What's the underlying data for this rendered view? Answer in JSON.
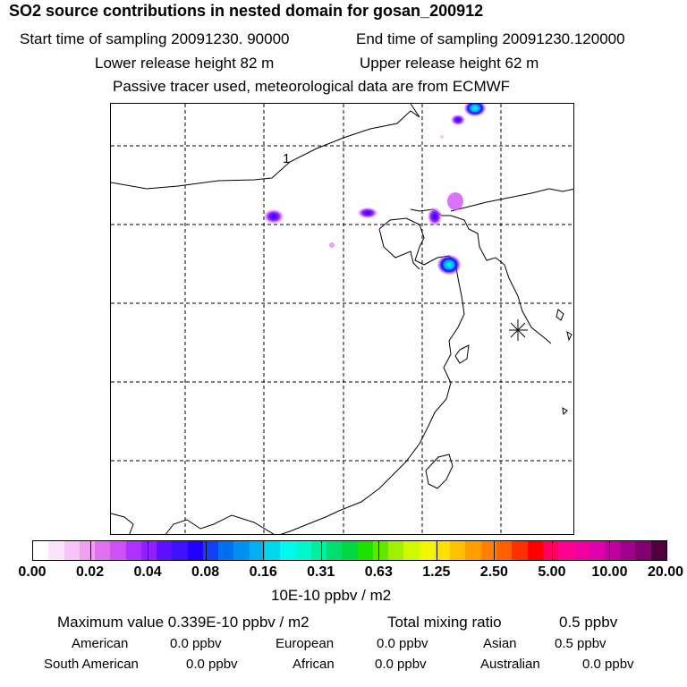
{
  "header": {
    "title": "SO2 source contributions in nested domain for gosan_200912",
    "start_label": "Start time of sampling 20091230. 90000",
    "end_label": "End time of sampling 20091230.120000",
    "lower_label": "Lower release height   82 m",
    "upper_label": "Upper release height   62 m",
    "note": "Passive tracer used, meteorological data are from ECMWF"
  },
  "map": {
    "marker_label": "1",
    "station_marker": "asterisk-icon",
    "plumes": [
      {
        "name": "plume-north-top",
        "level": "0.16"
      },
      {
        "name": "plume-north-mid",
        "level": "0.04"
      },
      {
        "name": "plume-west-1",
        "level": "0.04"
      },
      {
        "name": "plume-west-2",
        "level": "0.04"
      },
      {
        "name": "plume-bohai",
        "level": "0.08"
      },
      {
        "name": "plume-shandong",
        "level": "0.31"
      }
    ]
  },
  "colorbar": {
    "ticks": [
      "0.00",
      "0.02",
      "0.04",
      "0.08",
      "0.16",
      "0.31",
      "0.63",
      "1.25",
      "2.50",
      "5.00",
      "10.00",
      "20.00"
    ],
    "colors": [
      "#ffffff",
      "#fbe4fb",
      "#f6c4f6",
      "#f0a0f0",
      "#e070f0",
      "#d050f8",
      "#b030ff",
      "#9020ff",
      "#6010ff",
      "#4010ff",
      "#2000ff",
      "#1040f8",
      "#0070f0",
      "#0090f0",
      "#00b0f0",
      "#00d8f0",
      "#00f8f0",
      "#00f8d0",
      "#00f0a0",
      "#00e070",
      "#00d840",
      "#20e000",
      "#60e800",
      "#a0f000",
      "#d0f800",
      "#f0f800",
      "#ffe000",
      "#ffc000",
      "#ffa000",
      "#ff8000",
      "#ff6000",
      "#ff3000",
      "#ff0000",
      "#ff0060",
      "#ff0090",
      "#f000a0",
      "#e000b0",
      "#c000a0",
      "#a00090",
      "#800070",
      "#500040"
    ],
    "units": "10E-10 ppbv / m2"
  },
  "stats": {
    "max_label": "Maximum value  0.339E-10 ppbv / m2",
    "total_label": "Total mixing ratio",
    "total_value": "0.5 ppbv",
    "regions": [
      {
        "name": "American",
        "value": "0.0 ppbv"
      },
      {
        "name": "European",
        "value": "0.0 ppbv"
      },
      {
        "name": "Asian",
        "value": "0.5 ppbv"
      },
      {
        "name": "South American",
        "value": "0.0 ppbv"
      },
      {
        "name": "African",
        "value": "0.0 ppbv"
      },
      {
        "name": "Australian",
        "value": "0.0 ppbv"
      }
    ]
  }
}
